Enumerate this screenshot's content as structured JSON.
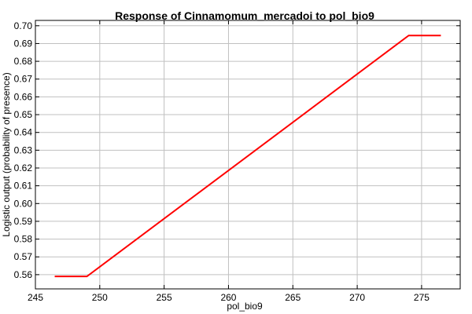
{
  "chart_data": {
    "type": "line",
    "title": "Response of Cinnamomum_mercadoi to pol_bio9",
    "xlabel": "pol_bio9",
    "ylabel": "Logistic output (probability of presence)",
    "xlim": [
      245,
      278
    ],
    "ylim": [
      0.552,
      0.703
    ],
    "xticks": [
      245,
      250,
      255,
      260,
      265,
      270,
      275
    ],
    "yticks": [
      0.56,
      0.57,
      0.58,
      0.59,
      0.6,
      0.61,
      0.62,
      0.63,
      0.64,
      0.65,
      0.66,
      0.67,
      0.68,
      0.69,
      0.7
    ],
    "grid": true,
    "series": [
      {
        "color": "#ff0000",
        "x": [
          246.5,
          249.0,
          274.0,
          276.5
        ],
        "y": [
          0.559,
          0.559,
          0.6945,
          0.6945
        ]
      }
    ]
  }
}
